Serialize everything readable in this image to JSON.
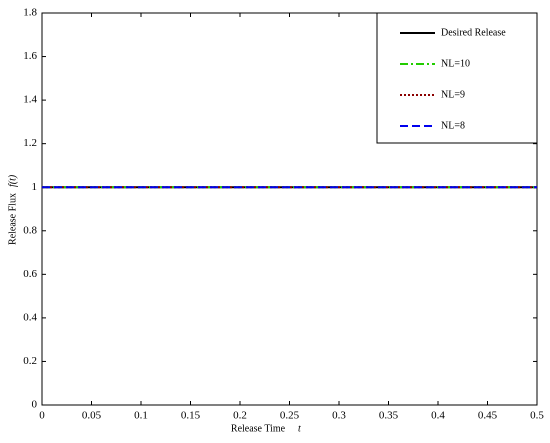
{
  "chart_data": {
    "type": "line",
    "x_label": "Release Time",
    "x_label_symbol": "t",
    "y_label": "Release Flux",
    "y_label_symbol": "f(t)",
    "x": [
      0,
      0.5
    ],
    "series": [
      {
        "name": "Desired Release",
        "color": "#000000",
        "linestyle": "solid",
        "values": [
          1,
          1
        ]
      },
      {
        "name": "NL=10",
        "color": "#22cc00",
        "linestyle": "dashdot",
        "values": [
          1,
          1
        ]
      },
      {
        "name": "NL=9",
        "color": "#8b0000",
        "linestyle": "dotted",
        "values": [
          1,
          1
        ]
      },
      {
        "name": "NL=8",
        "color": "#0000ee",
        "linestyle": "dashed",
        "values": [
          1,
          1
        ]
      }
    ],
    "xlim": [
      0,
      0.5
    ],
    "xticks": [
      0,
      0.05,
      0.1,
      0.15,
      0.2,
      0.25,
      0.3,
      0.35,
      0.4,
      0.45,
      0.5
    ],
    "ylim": [
      0,
      1.8
    ],
    "yticks": [
      0,
      0.2,
      0.4,
      0.6,
      0.8,
      1,
      1.2,
      1.4,
      1.6,
      1.8
    ],
    "legend": "upper right"
  }
}
